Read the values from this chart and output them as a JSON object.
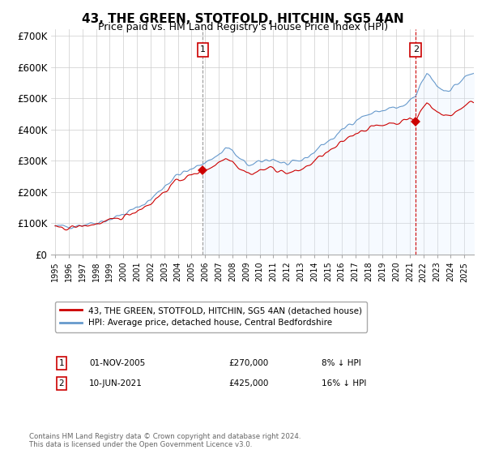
{
  "title": "43, THE GREEN, STOTFOLD, HITCHIN, SG5 4AN",
  "subtitle": "Price paid vs. HM Land Registry's House Price Index (HPI)",
  "ylabel_ticks": [
    "£0",
    "£100K",
    "£200K",
    "£300K",
    "£400K",
    "£500K",
    "£600K",
    "£700K"
  ],
  "ytick_values": [
    0,
    100000,
    200000,
    300000,
    400000,
    500000,
    600000,
    700000
  ],
  "ylim": [
    0,
    720000
  ],
  "sale1_date": "01-NOV-2005",
  "sale1_price": 270000,
  "sale1_label": "8% ↓ HPI",
  "sale1_x": 2005.83,
  "sale2_date": "10-JUN-2021",
  "sale2_price": 425000,
  "sale2_label": "16% ↓ HPI",
  "sale2_x": 2021.44,
  "legend_label1": "43, THE GREEN, STOTFOLD, HITCHIN, SG5 4AN (detached house)",
  "legend_label2": "HPI: Average price, detached house, Central Bedfordshire",
  "footer": "Contains HM Land Registry data © Crown copyright and database right 2024.\nThis data is licensed under the Open Government Licence v3.0.",
  "price_color": "#cc0000",
  "hpi_color": "#6699cc",
  "hpi_fill_color": "#ddeeff",
  "background_color": "#ffffff",
  "grid_color": "#cccccc",
  "sale1_line_color": "#888888",
  "sale2_line_color": "#cc0000",
  "box_color": "#cc0000"
}
